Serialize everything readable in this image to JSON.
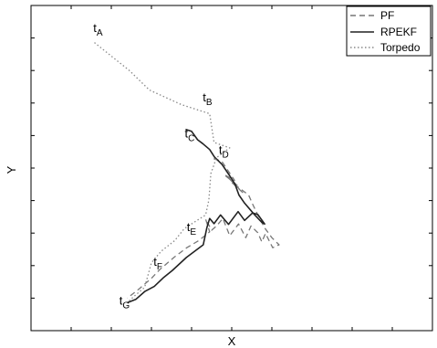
{
  "chart_data": {
    "type": "line",
    "title": "",
    "xlabel": "X",
    "ylabel": "Y",
    "xlim": [
      0,
      100
    ],
    "ylim": [
      0,
      100
    ],
    "grid": false,
    "legend_position": "top-right",
    "series": [
      {
        "name": "PF",
        "style": "dashed",
        "color": "#777777",
        "points": [
          [
            45.5,
            52.9
          ],
          [
            47.5,
            52.1
          ],
          [
            50.7,
            46.2
          ],
          [
            48.1,
            48.0
          ],
          [
            51.7,
            44.3
          ],
          [
            48.8,
            47.5
          ],
          [
            52.7,
            42.5
          ],
          [
            50.0,
            45.6
          ],
          [
            54.2,
            41.7
          ],
          [
            55.2,
            38.9
          ],
          [
            56.5,
            35.6
          ],
          [
            58.2,
            31.6
          ],
          [
            60.0,
            28.6
          ],
          [
            61.8,
            26.4
          ],
          [
            60.2,
            25.5
          ],
          [
            58.4,
            29.9
          ],
          [
            57.5,
            27.3
          ],
          [
            56.5,
            30.1
          ],
          [
            54.8,
            32.2
          ],
          [
            53.5,
            28.6
          ],
          [
            51.7,
            32.8
          ],
          [
            49.5,
            29.2
          ],
          [
            47.8,
            34.5
          ],
          [
            46.2,
            32.2
          ],
          [
            45.0,
            30.9
          ],
          [
            43.5,
            34.3
          ],
          [
            44.5,
            30.4
          ],
          [
            41.8,
            27.7
          ],
          [
            38.8,
            25.5
          ],
          [
            35.6,
            22.5
          ],
          [
            32.0,
            18.7
          ],
          [
            30.0,
            16.1
          ],
          [
            27.1,
            13.0
          ],
          [
            24.0,
            10.0
          ]
        ]
      },
      {
        "name": "RPEKF",
        "style": "solid",
        "color": "#222222",
        "points": [
          [
            38.5,
            61.9
          ],
          [
            40.0,
            61.3
          ],
          [
            41.5,
            58.7
          ],
          [
            42.8,
            57.5
          ],
          [
            44.5,
            55.7
          ],
          [
            45.7,
            53.4
          ],
          [
            47.6,
            51.1
          ],
          [
            49.5,
            47.6
          ],
          [
            50.8,
            45.1
          ],
          [
            51.8,
            41.7
          ],
          [
            53.2,
            39.2
          ],
          [
            55.5,
            35.9
          ],
          [
            57.5,
            33.3
          ],
          [
            58.2,
            32.8
          ],
          [
            56.5,
            35.7
          ],
          [
            55.2,
            36.2
          ],
          [
            53.2,
            33.9
          ],
          [
            51.6,
            36.6
          ],
          [
            49.2,
            32.7
          ],
          [
            47.2,
            35.6
          ],
          [
            45.6,
            32.9
          ],
          [
            44.5,
            34.5
          ],
          [
            43.8,
            31.6
          ],
          [
            42.9,
            26.4
          ],
          [
            38.7,
            22.5
          ],
          [
            35.2,
            18.5
          ],
          [
            33.1,
            16.4
          ],
          [
            30.7,
            13.6
          ],
          [
            28.4,
            12.1
          ],
          [
            26.1,
            9.6
          ],
          [
            24.0,
            8.6
          ]
        ]
      },
      {
        "name": "Torpedo",
        "style": "dotted",
        "color": "#888888",
        "points": [
          [
            15.8,
            88.6
          ],
          [
            24.5,
            80.0
          ],
          [
            29.5,
            74.0
          ],
          [
            37.5,
            69.5
          ],
          [
            44.5,
            66.7
          ],
          [
            45.6,
            57.9
          ],
          [
            49.5,
            56.2
          ],
          [
            46.2,
            53.2
          ],
          [
            44.8,
            48.3
          ],
          [
            44.3,
            40.1
          ],
          [
            43.5,
            35.6
          ],
          [
            38.2,
            31.4
          ],
          [
            35.8,
            27.7
          ],
          [
            32.4,
            24.4
          ],
          [
            30.0,
            20.9
          ],
          [
            28.3,
            13.3
          ],
          [
            25.7,
            10.6
          ],
          [
            24.0,
            8.6
          ]
        ]
      }
    ],
    "annotations": [
      {
        "base": "t",
        "sub": "A",
        "x": 15.5,
        "y": 91.8
      },
      {
        "base": "t",
        "sub": "B",
        "x": 42.8,
        "y": 70.5
      },
      {
        "base": "t",
        "sub": "C",
        "x": 38.3,
        "y": 59.4
      },
      {
        "base": "t",
        "sub": "D",
        "x": 46.8,
        "y": 54.4
      },
      {
        "base": "t",
        "sub": "E",
        "x": 38.8,
        "y": 30.6
      },
      {
        "base": "t",
        "sub": "F",
        "x": 30.5,
        "y": 20.0
      },
      {
        "base": "t",
        "sub": "G",
        "x": 22.0,
        "y": 8.0
      }
    ],
    "frame": {
      "x_ticks": [
        10,
        20,
        30,
        40,
        50,
        60,
        70,
        80,
        90
      ],
      "y_ticks": [
        10,
        20,
        30,
        40,
        50,
        60,
        70,
        80,
        90
      ]
    }
  }
}
